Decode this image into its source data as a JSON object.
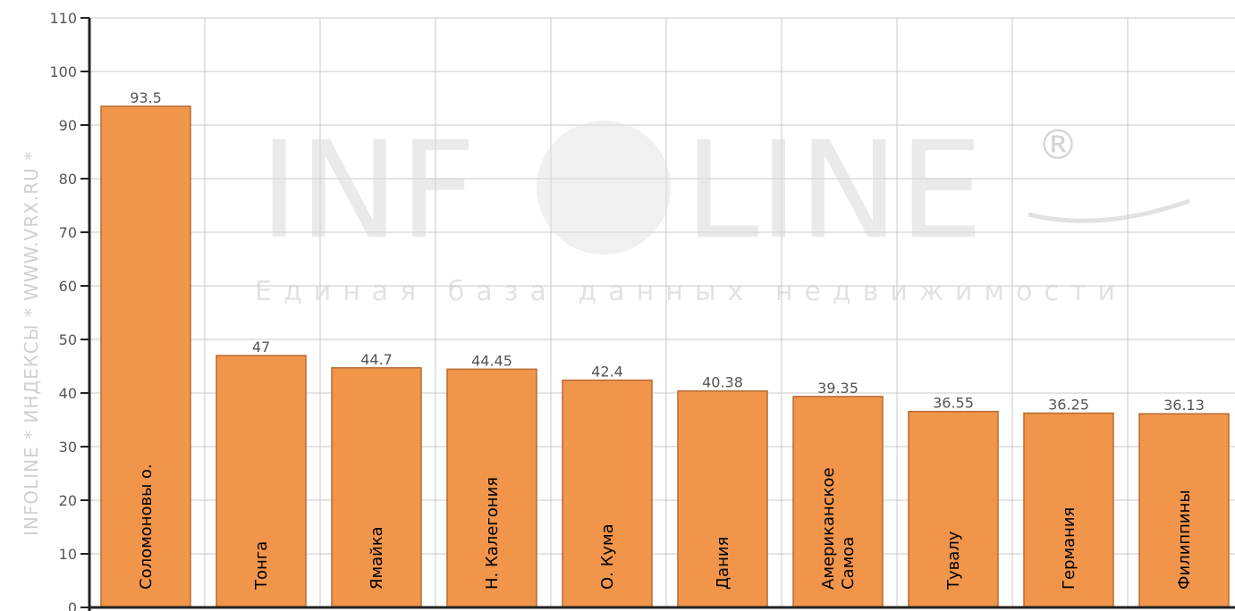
{
  "chart_data": {
    "type": "bar",
    "categories": [
      "Соломоновы о.",
      "Тонга",
      "Ямайка",
      "Н. Калегония",
      "О. Кума",
      "Дания",
      "Американское Самоа",
      "Тувалу",
      "Германия",
      "Филиппины"
    ],
    "values": [
      93.5,
      47,
      44.7,
      44.45,
      42.4,
      40.38,
      39.35,
      36.55,
      36.25,
      36.13
    ],
    "value_labels": [
      "93.5",
      "47",
      "44.7",
      "44.45",
      "42.4",
      "40.38",
      "39.35",
      "36.55",
      "36.25",
      "36.13"
    ],
    "y_ticks": [
      0,
      10,
      20,
      30,
      40,
      50,
      60,
      70,
      80,
      90,
      100,
      110
    ],
    "ylim": [
      0,
      110
    ],
    "grid": true,
    "bar_color": "#f0954a",
    "bar_edge_color": "#b86a34",
    "label_orientation": "vertical-inside-bar"
  },
  "watermark": {
    "brand": "INFOLINE",
    "registered": "®",
    "tagline": "Единая база данных недвижимости",
    "side_text": "INFOLINE * ИНДЕКСЫ * WWW.VRX.RU *"
  }
}
